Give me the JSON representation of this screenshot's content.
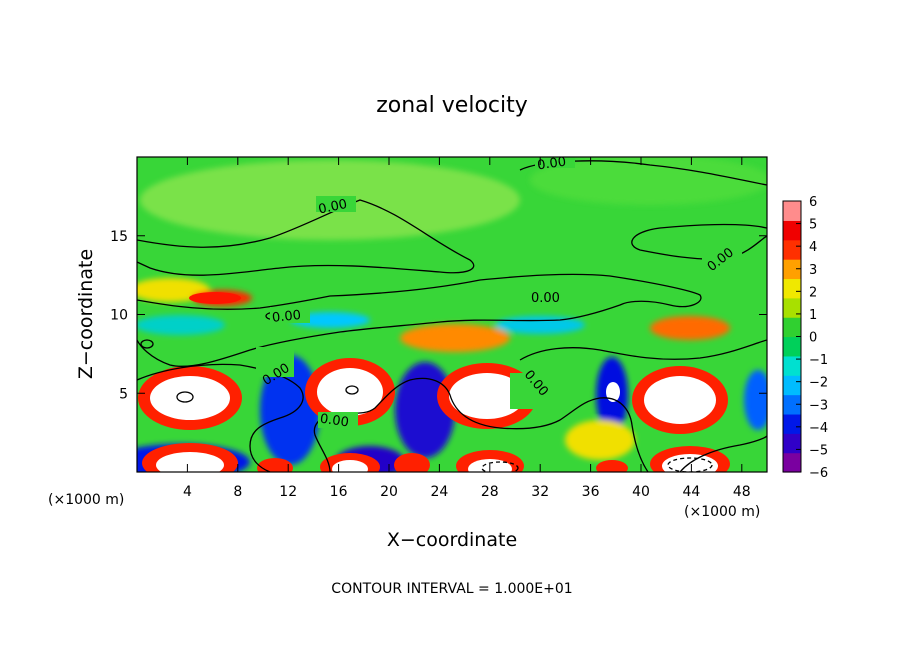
{
  "chart_data": {
    "type": "heatmap",
    "title": "zonal velocity",
    "xlabel": "X−coordinate",
    "ylabel": "Z−coordinate",
    "x_unit_left": "(×1000 m)",
    "x_unit_right": "(×1000 m)",
    "footer": "CONTOUR INTERVAL = 1.000E+01",
    "xlim": [
      0,
      50
    ],
    "ylim": [
      0,
      20
    ],
    "x_ticks": [
      4,
      8,
      12,
      16,
      20,
      24,
      28,
      32,
      36,
      40,
      44,
      48
    ],
    "y_ticks": [
      5,
      10,
      15
    ],
    "colorbar": {
      "min": -6,
      "max": 6,
      "ticks": [
        6,
        5,
        4,
        3,
        2,
        1,
        0,
        -1,
        -2,
        -3,
        -4,
        -5,
        -6
      ],
      "tick_labels": [
        "6",
        "5",
        "4",
        "3",
        "2",
        "1",
        "0",
        "−1",
        "−2",
        "−3",
        "−4",
        "−5",
        "−6"
      ],
      "colors": [
        "#7a00a0",
        "#3000c8",
        "#0018e8",
        "#0070ff",
        "#00bcff",
        "#00e0d0",
        "#00d05a",
        "#30d030",
        "#a8e000",
        "#f0e800",
        "#ffa000",
        "#ff3000",
        "#f00000",
        "#ff8c8c"
      ]
    },
    "contour_labels": [
      "0.00",
      "0.00",
      "0.00",
      "0.00",
      "0.00",
      "0.00",
      "0.00",
      "0.00",
      "0.00"
    ],
    "features": [
      {
        "x": 6.5,
        "z": 4.7,
        "kind": "strong-positive"
      },
      {
        "x": 17,
        "z": 5.0,
        "kind": "strong-positive"
      },
      {
        "x": 28.5,
        "z": 4.8,
        "kind": "strong-positive"
      },
      {
        "x": 42.5,
        "z": 4.7,
        "kind": "strong-positive"
      },
      {
        "x": 5,
        "z": 0.8,
        "kind": "strong-positive"
      },
      {
        "x": 17,
        "z": 0.6,
        "kind": "strong-positive"
      },
      {
        "x": 30,
        "z": 0.6,
        "kind": "strong-positive"
      },
      {
        "x": 44,
        "z": 0.7,
        "kind": "strong-positive"
      },
      {
        "x": 23,
        "z": 3.8,
        "kind": "strong-negative"
      },
      {
        "x": 38,
        "z": 5.2,
        "kind": "strong-negative"
      },
      {
        "x": 12,
        "z": 4.5,
        "kind": "strong-negative"
      },
      {
        "x": 7,
        "z": 10.9,
        "kind": "positive"
      },
      {
        "x": 26,
        "z": 8.6,
        "kind": "positive"
      },
      {
        "x": 42,
        "z": 9.0,
        "kind": "positive"
      }
    ]
  }
}
